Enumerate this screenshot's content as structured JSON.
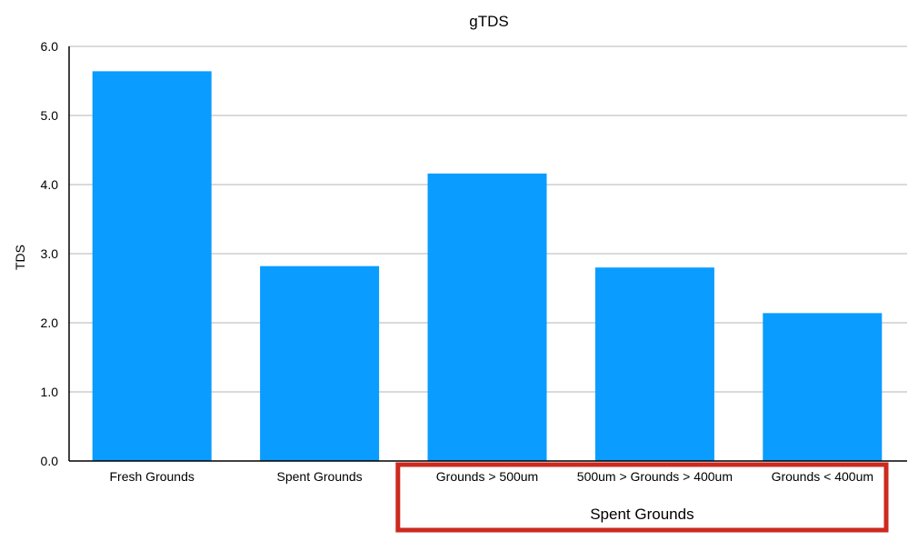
{
  "chart_data": {
    "type": "bar",
    "title": "gTDS",
    "xlabel": "",
    "ylabel": "TDS",
    "ylim": [
      0,
      6
    ],
    "y_ticks": [
      "0.0",
      "1.0",
      "2.0",
      "3.0",
      "4.0",
      "5.0",
      "6.0"
    ],
    "grid": true,
    "categories": [
      "Fresh Grounds",
      "Spent Grounds",
      "Grounds > 500um",
      "500um > Grounds > 400um",
      "Grounds < 400um"
    ],
    "values": [
      5.64,
      2.82,
      4.16,
      2.8,
      2.14
    ],
    "colors": {
      "bar": "#0a9cff",
      "grid": "#b4b4b4",
      "axis": "#000000",
      "highlight_box": "#cc2a1f"
    },
    "annotation": {
      "label": "Spent Grounds",
      "categories": [
        "Grounds > 500um",
        "500um > Grounds > 400um",
        "Grounds < 400um"
      ]
    }
  }
}
